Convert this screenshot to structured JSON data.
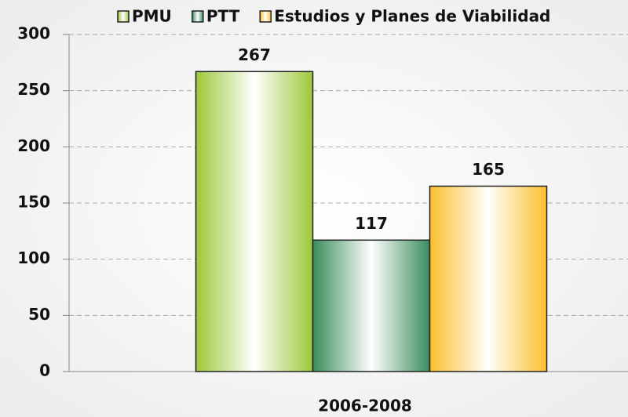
{
  "chart_data": {
    "type": "bar",
    "categories": [
      "2006-2008"
    ],
    "series": [
      {
        "name": "PMU",
        "color": "#9cc83a",
        "values": [
          267
        ]
      },
      {
        "name": "PTT",
        "color": "#3a8c5c",
        "values": [
          117
        ]
      },
      {
        "name": "Estudios y Planes de Viabilidad",
        "color": "#fbbf2c",
        "values": [
          165
        ]
      }
    ],
    "value_labels": [
      [
        "267"
      ],
      [
        "117"
      ],
      [
        "165"
      ]
    ],
    "ylim": [
      0,
      300
    ],
    "yticks": [
      0,
      50,
      100,
      150,
      200,
      250,
      300
    ],
    "grid": true,
    "legend": "top"
  }
}
